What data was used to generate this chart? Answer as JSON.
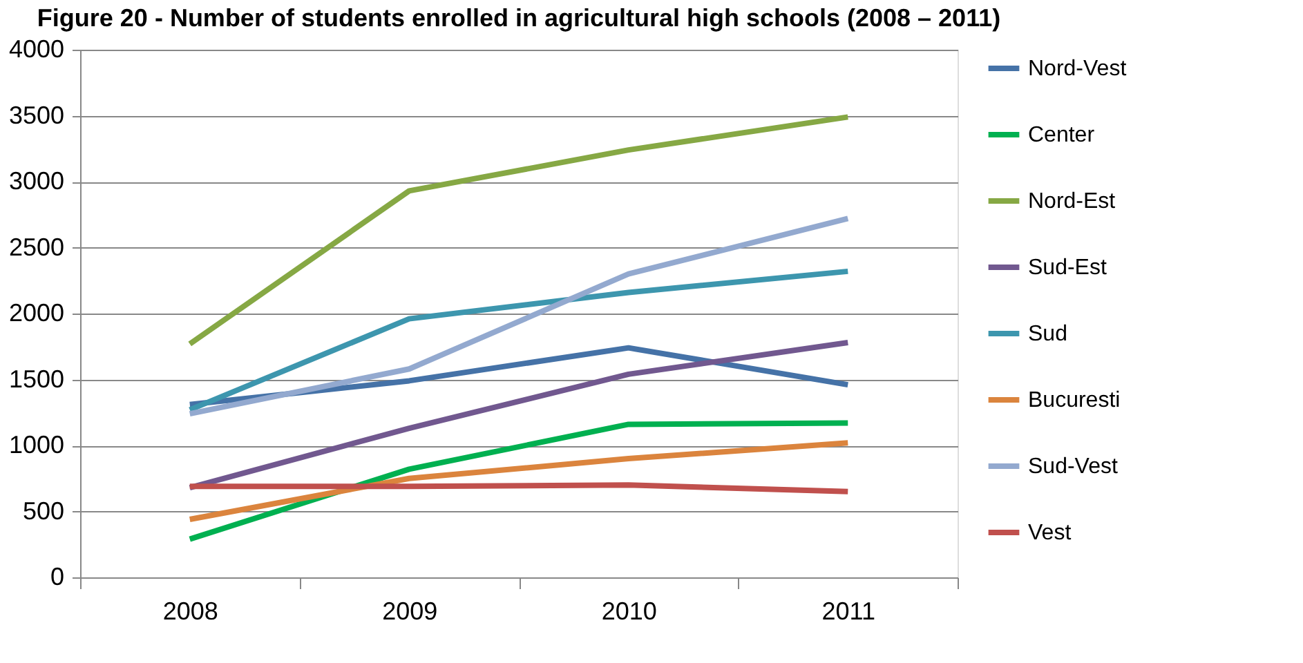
{
  "chart_data": {
    "type": "line",
    "title": "Figure 20 - Number of students enrolled in agricultural high schools (2008 – 2011)",
    "categories": [
      "2008",
      "2009",
      "2010",
      "2011"
    ],
    "series": [
      {
        "name": "Nord-Vest",
        "color": "#4572a7",
        "values": [
          1310,
          1490,
          1740,
          1460
        ]
      },
      {
        "name": "Center",
        "color": "#00b050",
        "values": [
          290,
          820,
          1160,
          1170
        ]
      },
      {
        "name": "Nord-Est",
        "color": "#86a844",
        "values": [
          1770,
          2930,
          3240,
          3490
        ]
      },
      {
        "name": "Sud-Est",
        "color": "#71588f",
        "values": [
          680,
          1130,
          1540,
          1780
        ]
      },
      {
        "name": "Sud",
        "color": "#3d96ae",
        "values": [
          1270,
          1960,
          2160,
          2320
        ]
      },
      {
        "name": "Bucuresti",
        "color": "#db843d",
        "values": [
          440,
          750,
          900,
          1020
        ]
      },
      {
        "name": "Sud-Vest",
        "color": "#93a9cf",
        "values": [
          1240,
          1580,
          2300,
          2720
        ]
      },
      {
        "name": "Vest",
        "color": "#c0504d",
        "values": [
          690,
          690,
          700,
          650
        ]
      }
    ],
    "ylim": [
      0,
      4000
    ],
    "yticks": [
      0,
      500,
      1000,
      1500,
      2000,
      2500,
      3000,
      3500,
      4000
    ],
    "grid": "y",
    "legend": "right",
    "marker": "none",
    "line_style": "solid"
  }
}
